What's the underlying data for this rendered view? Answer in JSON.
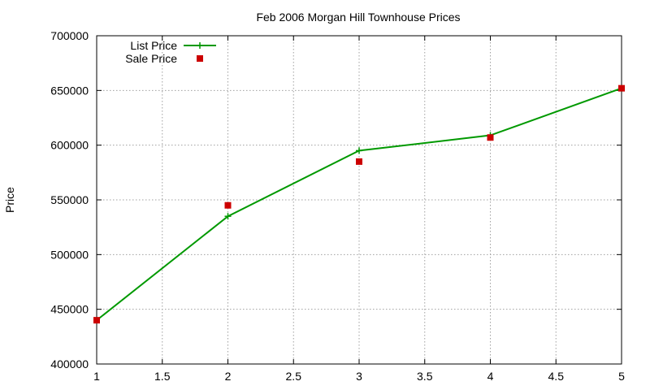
{
  "chart_data": {
    "type": "line",
    "title": "Feb 2006 Morgan Hill Townhouse Prices",
    "xlabel": "",
    "ylabel": "Price",
    "xlim": [
      1,
      5
    ],
    "ylim": [
      400000,
      700000
    ],
    "x_ticks": [
      1,
      1.5,
      2,
      2.5,
      3,
      3.5,
      4,
      4.5,
      5
    ],
    "x_tick_labels": [
      "1",
      "1.5",
      "2",
      "2.5",
      "3",
      "3.5",
      "4",
      "4.5",
      "5"
    ],
    "y_ticks": [
      400000,
      450000,
      500000,
      550000,
      600000,
      650000,
      700000
    ],
    "y_tick_labels": [
      "400000",
      "450000",
      "500000",
      "550000",
      "600000",
      "650000",
      "700000"
    ],
    "grid": true,
    "legend_position": "top-left",
    "series": [
      {
        "name": "List Price",
        "style": "lines+points",
        "marker": "plus",
        "color": "#009900",
        "x": [
          1,
          2,
          3,
          4,
          5
        ],
        "y": [
          440000,
          535000,
          595000,
          609000,
          652000
        ]
      },
      {
        "name": "Sale Price",
        "style": "points",
        "marker": "square",
        "color": "#cc0000",
        "x": [
          1,
          2,
          3,
          4,
          5
        ],
        "y": [
          440000,
          545000,
          585000,
          607000,
          652000
        ]
      }
    ]
  }
}
